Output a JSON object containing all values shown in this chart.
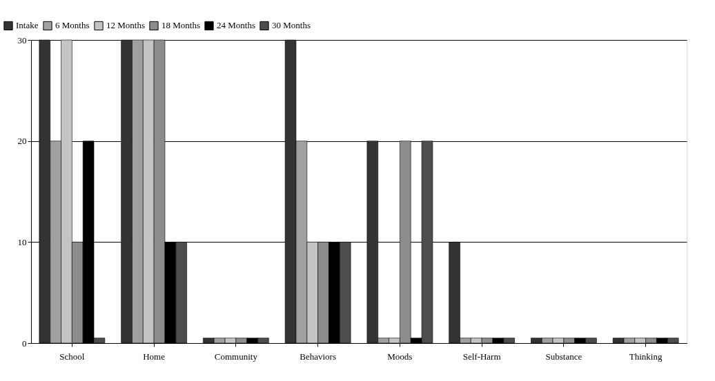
{
  "chart_data": {
    "type": "bar",
    "categories": [
      "School",
      "Home",
      "Community",
      "Behaviors",
      "Moods",
      "Self-Harm",
      "Substance",
      "Thinking"
    ],
    "series": [
      {
        "name": "Intake",
        "color": "#333333",
        "values": [
          30,
          30,
          0.5,
          30,
          20,
          10,
          0.5,
          0.5
        ]
      },
      {
        "name": "6 Months",
        "color": "#a0a0a0",
        "values": [
          20,
          30,
          0.5,
          20,
          0.5,
          0.5,
          0.5,
          0.5
        ]
      },
      {
        "name": "12 Months",
        "color": "#c4c4c4",
        "values": [
          30,
          30,
          0.5,
          10,
          0.5,
          0.5,
          0.5,
          0.5
        ]
      },
      {
        "name": "18 Months",
        "color": "#8c8c8c",
        "values": [
          10,
          30,
          0.5,
          10,
          20,
          0.5,
          0.5,
          0.5
        ]
      },
      {
        "name": "24 Months",
        "color": "#000000",
        "values": [
          20,
          10,
          0.5,
          10,
          0.5,
          0.5,
          0.5,
          0.5
        ]
      },
      {
        "name": "30 Months",
        "color": "#4d4d4d",
        "values": [
          0.5,
          10,
          0.5,
          10,
          20,
          0.5,
          0.5,
          0.5
        ]
      }
    ],
    "ylim": [
      0,
      30
    ],
    "yticks": [
      0,
      10,
      20,
      30
    ],
    "grid": "y",
    "legend": "top left"
  }
}
